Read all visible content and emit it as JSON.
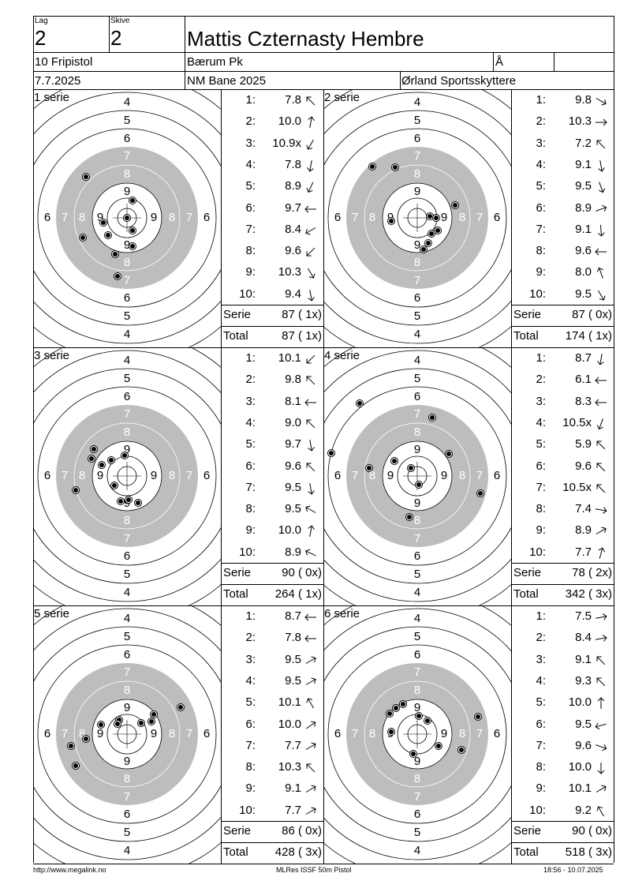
{
  "header": {
    "lag_label": "Lag",
    "lag_value": "2",
    "skive_label": "Skive",
    "skive_value": "2",
    "shooter_name": "Mattis Czternasty Hembre",
    "event": "10 Fripistol",
    "club": "Bærum Pk",
    "class_label": "Å",
    "date": "7.7.2025",
    "competition": "NM Bane 2025",
    "organizer": "Ørland Sportsskyttere"
  },
  "serie_label": "Serie",
  "total_label": "Total",
  "ring_labels": {
    "outer": [
      "4",
      "5",
      "6"
    ],
    "inner": [
      "7",
      "8",
      "9"
    ],
    "side_left": [
      "6",
      "7",
      "8",
      "9"
    ],
    "side_right": [
      "9",
      "8",
      "7",
      "6"
    ]
  },
  "series": [
    {
      "title": "1 serie",
      "serie": "87 ( 1x)",
      "total": "87 ( 1x)",
      "shots": [
        {
          "n": "1:",
          "v": "7.8",
          "d": 315
        },
        {
          "n": "2:",
          "v": "10.0",
          "d": 10
        },
        {
          "n": "3:",
          "v": "10.9x",
          "d": 210
        },
        {
          "n": "4:",
          "v": "7.8",
          "d": 190
        },
        {
          "n": "5:",
          "v": "8.9",
          "d": 205
        },
        {
          "n": "6:",
          "v": "9.7",
          "d": 270
        },
        {
          "n": "7:",
          "v": "8.4",
          "d": 240
        },
        {
          "n": "8:",
          "v": "9.6",
          "d": 225
        },
        {
          "n": "9:",
          "v": "10.3",
          "d": 150
        },
        {
          "n": "10:",
          "v": "9.4",
          "d": 170
        }
      ],
      "hits": [
        [
          -52,
          -52
        ],
        [
          7,
          -22
        ],
        [
          0,
          0
        ],
        [
          7,
          16
        ],
        [
          -30,
          6
        ],
        [
          -24,
          22
        ],
        [
          -56,
          25
        ],
        [
          7,
          36
        ],
        [
          -15,
          46
        ],
        [
          -12,
          74
        ]
      ]
    },
    {
      "title": "2 serie",
      "serie": "87 ( 0x)",
      "total": "174 ( 1x)",
      "shots": [
        {
          "n": "1:",
          "v": "9.8",
          "d": 120
        },
        {
          "n": "2:",
          "v": "10.3",
          "d": 90
        },
        {
          "n": "3:",
          "v": "7.2",
          "d": 315
        },
        {
          "n": "4:",
          "v": "9.1",
          "d": 170
        },
        {
          "n": "5:",
          "v": "9.5",
          "d": 160
        },
        {
          "n": "6:",
          "v": "8.9",
          "d": 70
        },
        {
          "n": "7:",
          "v": "9.1",
          "d": 175
        },
        {
          "n": "8:",
          "v": "9.6",
          "d": 270
        },
        {
          "n": "9:",
          "v": "8.0",
          "d": 340
        },
        {
          "n": "10:",
          "v": "9.5",
          "d": 150
        }
      ],
      "hits": [
        [
          -57,
          -65
        ],
        [
          -28,
          -64
        ],
        [
          48,
          -16
        ],
        [
          16,
          -2
        ],
        [
          24,
          0
        ],
        [
          -33,
          4
        ],
        [
          26,
          16
        ],
        [
          18,
          20
        ],
        [
          14,
          32
        ],
        [
          8,
          40
        ]
      ]
    },
    {
      "title": "3 serie",
      "serie": "90 ( 0x)",
      "total": "264 ( 1x)",
      "shots": [
        {
          "n": "1:",
          "v": "10.1",
          "d": 225
        },
        {
          "n": "2:",
          "v": "9.8",
          "d": 315
        },
        {
          "n": "3:",
          "v": "8.1",
          "d": 270
        },
        {
          "n": "4:",
          "v": "9.0",
          "d": 315
        },
        {
          "n": "5:",
          "v": "9.7",
          "d": 170
        },
        {
          "n": "6:",
          "v": "9.6",
          "d": 315
        },
        {
          "n": "7:",
          "v": "9.5",
          "d": 170
        },
        {
          "n": "8:",
          "v": "9.5",
          "d": 300
        },
        {
          "n": "9:",
          "v": "10.0",
          "d": 10
        },
        {
          "n": "10:",
          "v": "8.9",
          "d": 295
        }
      ],
      "hits": [
        [
          -42,
          -34
        ],
        [
          -3,
          -26
        ],
        [
          -20,
          -20
        ],
        [
          -45,
          -22
        ],
        [
          -32,
          -14
        ],
        [
          -65,
          18
        ],
        [
          -16,
          12
        ],
        [
          -8,
          32
        ],
        [
          2,
          30
        ],
        [
          14,
          34
        ]
      ]
    },
    {
      "title": "4 serie",
      "serie": "78 ( 2x)",
      "total": "342 ( 3x)",
      "shots": [
        {
          "n": "1:",
          "v": "8.7",
          "d": 190
        },
        {
          "n": "2:",
          "v": "6.1",
          "d": 270
        },
        {
          "n": "3:",
          "v": "8.3",
          "d": 270
        },
        {
          "n": "4:",
          "v": "10.5x",
          "d": 200
        },
        {
          "n": "5:",
          "v": "5.9",
          "d": 315
        },
        {
          "n": "6:",
          "v": "9.6",
          "d": 315
        },
        {
          "n": "7:",
          "v": "10.5x",
          "d": 315
        },
        {
          "n": "8:",
          "v": "7.4",
          "d": 100
        },
        {
          "n": "9:",
          "v": "8.9",
          "d": 60
        },
        {
          "n": "10:",
          "v": "7.7",
          "d": 15
        }
      ],
      "hits": [
        [
          -73,
          -92
        ],
        [
          19,
          -74
        ],
        [
          -109,
          -29
        ],
        [
          40,
          -28
        ],
        [
          -29,
          -19
        ],
        [
          -61,
          -10
        ],
        [
          -8,
          -10
        ],
        [
          2,
          11
        ],
        [
          80,
          22
        ],
        [
          -10,
          52
        ]
      ]
    },
    {
      "title": "5 serie",
      "serie": "86 ( 0x)",
      "total": "428 ( 3x)",
      "shots": [
        {
          "n": "1:",
          "v": "8.7",
          "d": 270
        },
        {
          "n": "2:",
          "v": "7.8",
          "d": 270
        },
        {
          "n": "3:",
          "v": "9.5",
          "d": 60
        },
        {
          "n": "4:",
          "v": "9.5",
          "d": 60
        },
        {
          "n": "5:",
          "v": "10.1",
          "d": 330
        },
        {
          "n": "6:",
          "v": "10.0",
          "d": 55
        },
        {
          "n": "7:",
          "v": "7.7",
          "d": 60
        },
        {
          "n": "8:",
          "v": "10.3",
          "d": 315
        },
        {
          "n": "9:",
          "v": "9.1",
          "d": 60
        },
        {
          "n": "10:",
          "v": "7.7",
          "d": 60
        }
      ],
      "hits": [
        [
          68,
          -34
        ],
        [
          34,
          -25
        ],
        [
          31,
          -16
        ],
        [
          18,
          -14
        ],
        [
          -10,
          -18
        ],
        [
          -12,
          -13
        ],
        [
          -33,
          -12
        ],
        [
          -52,
          6
        ],
        [
          -71,
          15
        ],
        [
          -65,
          40
        ]
      ]
    },
    {
      "title": "6 serie",
      "serie": "90 ( 0x)",
      "total": "518 ( 3x)",
      "shots": [
        {
          "n": "1:",
          "v": "7.5",
          "d": 80
        },
        {
          "n": "2:",
          "v": "8.4",
          "d": 80
        },
        {
          "n": "3:",
          "v": "9.1",
          "d": 315
        },
        {
          "n": "4:",
          "v": "9.3",
          "d": 315
        },
        {
          "n": "5:",
          "v": "10.0",
          "d": 0
        },
        {
          "n": "6:",
          "v": "9.5",
          "d": 255
        },
        {
          "n": "7:",
          "v": "9.6",
          "d": 110
        },
        {
          "n": "8:",
          "v": "10.0",
          "d": 180
        },
        {
          "n": "9:",
          "v": "10.1",
          "d": 60
        },
        {
          "n": "10:",
          "v": "9.2",
          "d": 330
        }
      ],
      "hits": [
        [
          -18,
          -38
        ],
        [
          -27,
          -33
        ],
        [
          -35,
          -26
        ],
        [
          77,
          -22
        ],
        [
          2,
          -23
        ],
        [
          13,
          -17
        ],
        [
          -33,
          -3
        ],
        [
          27,
          15
        ],
        [
          56,
          20
        ],
        [
          -5,
          25
        ]
      ]
    }
  ],
  "footer": {
    "url": "http://www.megalink.no",
    "system": "MLRes ISSF 50m Pistol",
    "timestamp": "18:56 - 10.07.2025"
  }
}
